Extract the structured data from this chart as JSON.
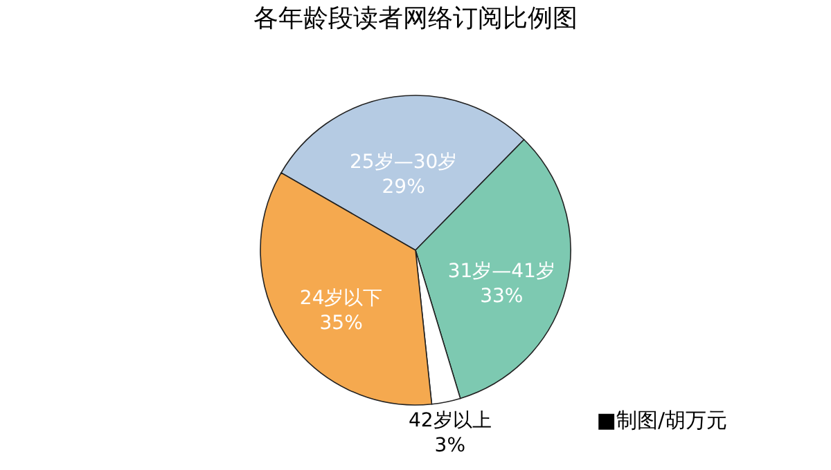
{
  "chart_data": {
    "type": "pie",
    "title": "各年龄段读者网络订阅比例图",
    "categories": [
      "25岁—30岁",
      "31岁—41岁",
      "42岁以上",
      "24岁以下"
    ],
    "values": [
      29,
      33,
      3,
      35
    ],
    "value_labels": [
      "29%",
      "33%",
      "3%",
      "35%"
    ],
    "colors": [
      "#b5cbe3",
      "#7dc9b1",
      "#ffffff",
      "#f5a94f"
    ],
    "annotations": [
      "■制图/胡万元"
    ]
  }
}
